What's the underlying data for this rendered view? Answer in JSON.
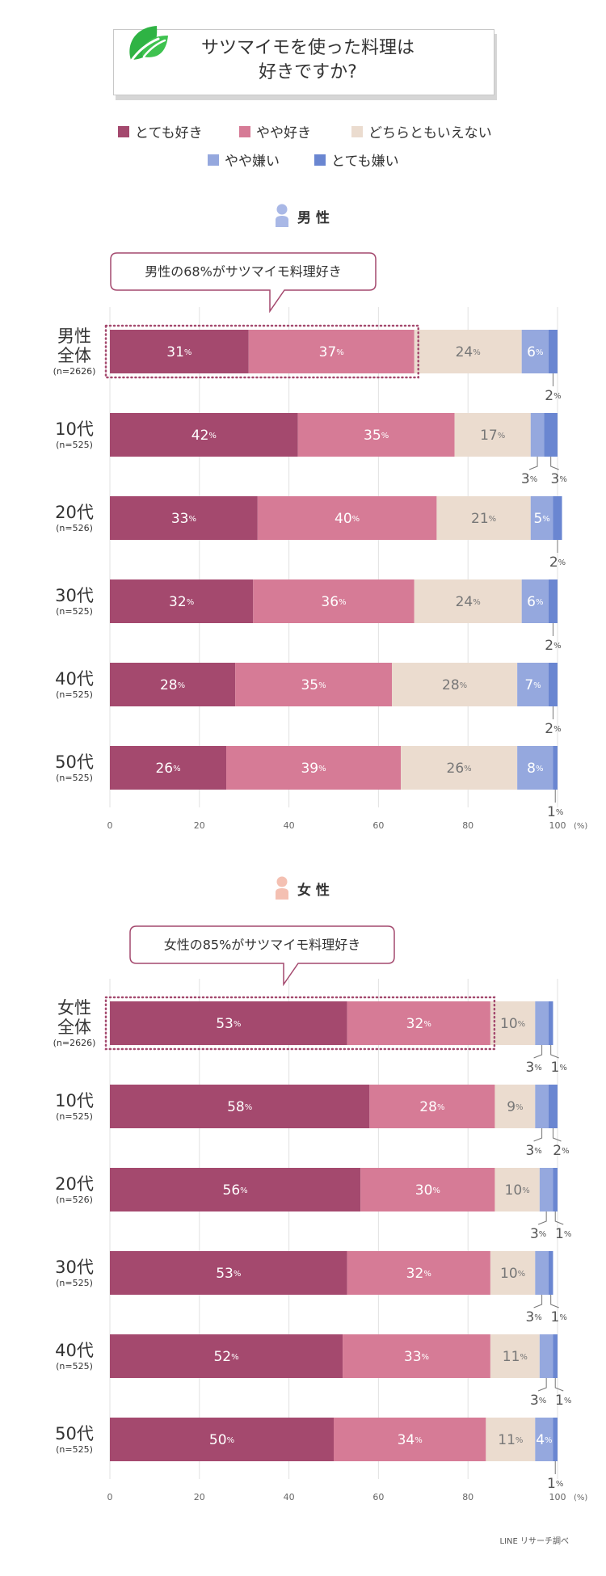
{
  "title": "サツマイモを使った料理は\n好きですか?",
  "legend": [
    {
      "label": "とても好き",
      "color": "#a4496e"
    },
    {
      "label": "やや好き",
      "color": "#d67b96"
    },
    {
      "label": "どちらともいえない",
      "color": "#ebdccf"
    },
    {
      "label": "やや嫌い",
      "color": "#95a8de"
    },
    {
      "label": "とても嫌い",
      "color": "#6a86d1"
    }
  ],
  "unit_suffix": "%",
  "axis_unit": "(%)",
  "source": "LINE リサーチ調べ",
  "chart_data": [
    {
      "type": "bar",
      "stacked": true,
      "orientation": "horizontal",
      "section_label": "男 性",
      "gender": "male",
      "callout": "男性の68%がサツマイモ料理好き",
      "categories": [
        {
          "name": "男性\n全体",
          "n": "(n=2626)"
        },
        {
          "name": "10代",
          "n": "(n=525)"
        },
        {
          "name": "20代",
          "n": "(n=526)"
        },
        {
          "name": "30代",
          "n": "(n=525)"
        },
        {
          "name": "40代",
          "n": "(n=525)"
        },
        {
          "name": "50代",
          "n": "(n=525)"
        }
      ],
      "series": [
        {
          "name": "とても好き",
          "values": [
            31,
            42,
            33,
            32,
            28,
            26
          ]
        },
        {
          "name": "やや好き",
          "values": [
            37,
            35,
            40,
            36,
            35,
            39
          ]
        },
        {
          "name": "どちらともいえない",
          "values": [
            24,
            17,
            21,
            24,
            28,
            26
          ]
        },
        {
          "name": "やや嫌い",
          "values": [
            6,
            3,
            5,
            6,
            7,
            8
          ]
        },
        {
          "name": "とても嫌い",
          "values": [
            2,
            3,
            2,
            2,
            2,
            1
          ]
        }
      ],
      "xlim": [
        0,
        100
      ],
      "xticks": [
        0,
        20,
        40,
        60,
        80,
        100
      ],
      "grid": true
    },
    {
      "type": "bar",
      "stacked": true,
      "orientation": "horizontal",
      "section_label": "女 性",
      "gender": "female",
      "callout": "女性の85%がサツマイモ料理好き",
      "categories": [
        {
          "name": "女性\n全体",
          "n": "(n=2626)"
        },
        {
          "name": "10代",
          "n": "(n=525)"
        },
        {
          "name": "20代",
          "n": "(n=526)"
        },
        {
          "name": "30代",
          "n": "(n=525)"
        },
        {
          "name": "40代",
          "n": "(n=525)"
        },
        {
          "name": "50代",
          "n": "(n=525)"
        }
      ],
      "series": [
        {
          "name": "とても好き",
          "values": [
            53,
            58,
            56,
            53,
            52,
            50
          ]
        },
        {
          "name": "やや好き",
          "values": [
            32,
            28,
            30,
            32,
            33,
            34
          ]
        },
        {
          "name": "どちらともいえない",
          "values": [
            10,
            9,
            10,
            10,
            11,
            11
          ]
        },
        {
          "name": "やや嫌い",
          "values": [
            3,
            3,
            3,
            3,
            3,
            4
          ]
        },
        {
          "name": "とても嫌い",
          "values": [
            1,
            2,
            1,
            1,
            1,
            1
          ]
        }
      ],
      "xlim": [
        0,
        100
      ],
      "xticks": [
        0,
        20,
        40,
        60,
        80,
        100
      ],
      "grid": true
    }
  ]
}
